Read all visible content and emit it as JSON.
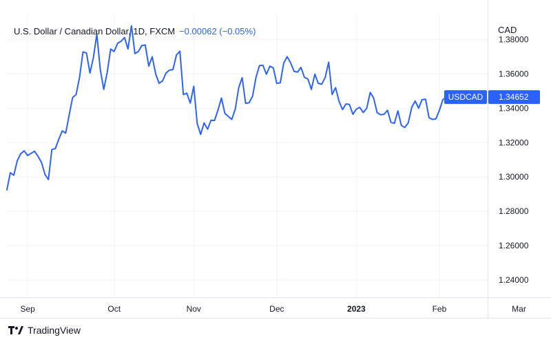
{
  "legend": {
    "symbol_text": "U.S. Dollar / Canadian Dollar, 1D, FXCM",
    "change_text": "−0.00062 (−0.05%)"
  },
  "currency_label": "CAD",
  "branding": {
    "logo_icon": "tradingview-logo-icon",
    "text": "TradingView"
  },
  "colors": {
    "line": "#2962ff",
    "grid": "#f0f3fa",
    "tag": "#2962ff"
  },
  "price_tag": {
    "symbol": "USDCAD",
    "value": "1.34652"
  },
  "chart_data": {
    "type": "line",
    "title": "U.S. Dollar / Canadian Dollar, 1D, FXCM",
    "ylabel": "CAD",
    "ylim": [
      1.23,
      1.395
    ],
    "xlim": [
      0,
      145
    ],
    "grid": true,
    "yticks": [
      1.24,
      1.26,
      1.28,
      1.3,
      1.32,
      1.34,
      1.36,
      1.38
    ],
    "ytick_labels": [
      "1.24000",
      "1.26000",
      "1.28000",
      "1.30000",
      "1.32000",
      "1.34000",
      "1.36000",
      "1.38000"
    ],
    "xticks": [
      {
        "label": "Sep",
        "x": 6,
        "bold": false
      },
      {
        "label": "Oct",
        "x": 31,
        "bold": false
      },
      {
        "label": "Nov",
        "x": 54,
        "bold": false
      },
      {
        "label": "Dec",
        "x": 78,
        "bold": false
      },
      {
        "label": "2023",
        "x": 101,
        "bold": true
      },
      {
        "label": "Feb",
        "x": 125,
        "bold": false
      },
      {
        "label": "Mar",
        "x": 148,
        "bold": false
      }
    ],
    "series": [
      {
        "name": "USDCAD",
        "values": [
          1.2925,
          1.3025,
          1.301,
          1.3095,
          1.3135,
          1.3152,
          1.3125,
          1.3138,
          1.315,
          1.312,
          1.3085,
          1.3015,
          1.2985,
          1.316,
          1.3165,
          1.322,
          1.3268,
          1.3255,
          1.336,
          1.3462,
          1.348,
          1.358,
          1.3728,
          1.3722,
          1.3605,
          1.3695,
          1.3832,
          1.3625,
          1.351,
          1.361,
          1.3745,
          1.373,
          1.3778,
          1.379,
          1.3812,
          1.3745,
          1.388,
          1.3718,
          1.373,
          1.3765,
          1.3768,
          1.3645,
          1.37,
          1.36,
          1.3545,
          1.356,
          1.3605,
          1.3622,
          1.3625,
          1.371,
          1.3732,
          1.348,
          1.3488,
          1.343,
          1.3528,
          1.3312,
          1.3248,
          1.3315,
          1.3278,
          1.333,
          1.3328,
          1.3388,
          1.346,
          1.337,
          1.3352,
          1.3335,
          1.3395,
          1.352,
          1.3578,
          1.3428,
          1.3432,
          1.347,
          1.358,
          1.3648,
          1.365,
          1.3598,
          1.3645,
          1.3635,
          1.3545,
          1.3548,
          1.3662,
          1.37,
          1.3665,
          1.3615,
          1.361,
          1.3638,
          1.358,
          1.357,
          1.351,
          1.3598,
          1.3545,
          1.354,
          1.358,
          1.3668,
          1.348,
          1.352,
          1.344,
          1.3392,
          1.3425,
          1.3422,
          1.3365,
          1.3395,
          1.3405,
          1.3375,
          1.34,
          1.3492,
          1.346,
          1.3375,
          1.3362,
          1.3365,
          1.3388,
          1.3318,
          1.3312,
          1.3385,
          1.33,
          1.3288,
          1.3315,
          1.3405,
          1.3442,
          1.34,
          1.345,
          1.3452,
          1.3345,
          1.3335,
          1.3338,
          1.3388,
          1.345,
          1.3465
        ]
      }
    ]
  }
}
